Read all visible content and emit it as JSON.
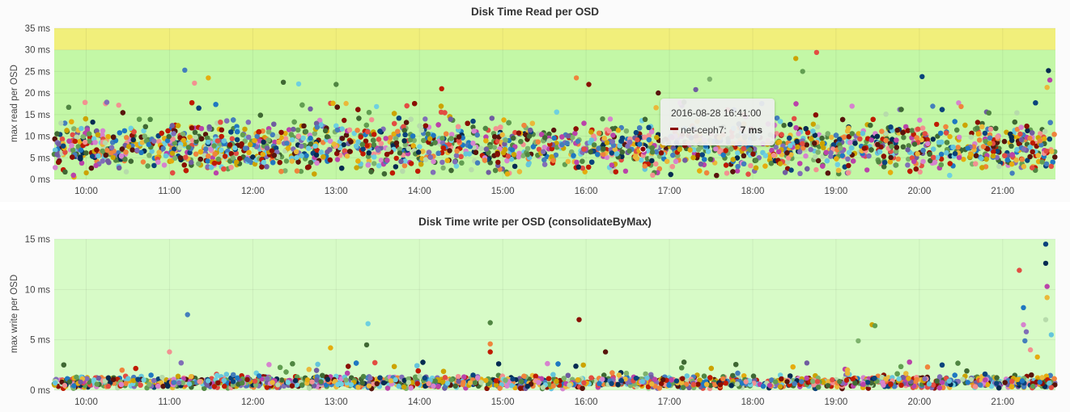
{
  "panels": {
    "read": {
      "title": "Disk Time Read per OSD",
      "ylabel": "max read per OSD"
    },
    "write": {
      "title": "Disk Time write per OSD (consolidateByMax)",
      "ylabel": "max write per OSD"
    }
  },
  "tooltip": {
    "time": "2016-08-28 16:41:00",
    "series": "net-ceph7:",
    "value": "7 ms",
    "series_color": "#8b0000"
  },
  "colors": {
    "threshold_ok": "#d7fbc7",
    "threshold_ok_strong": "#c3f7a6",
    "threshold_warning": "#f1ef7b",
    "palette": [
      "#3f6833",
      "#705da0",
      "#ba43a9",
      "#447ebc",
      "#ef843c",
      "#e24d42",
      "#1f78c1",
      "#6ed0e0",
      "#7eb26d",
      "#eab839",
      "#f29191",
      "#890f02",
      "#0a437c",
      "#d683ce",
      "#508642",
      "#cca300",
      "#b7dbab",
      "#e5ac0e",
      "#58140c",
      "#052b51",
      "#806eb7",
      "#bf1b00",
      "#629e51",
      "#65c5db"
    ]
  },
  "chart_data": [
    {
      "type": "scatter",
      "title": "Disk Time Read per OSD",
      "xlabel": "",
      "ylabel": "max read per OSD",
      "x_ticks": [
        "10:00",
        "11:00",
        "12:00",
        "13:00",
        "14:00",
        "15:00",
        "16:00",
        "17:00",
        "18:00",
        "19:00",
        "20:00",
        "21:00"
      ],
      "xlim": [
        "09:37",
        "21:38"
      ],
      "y_ticks": [
        "0 ms",
        "5 ms",
        "10 ms",
        "15 ms",
        "20 ms",
        "25 ms",
        "30 ms",
        "35 ms"
      ],
      "ylim": [
        0,
        35
      ],
      "thresholds": [
        {
          "from": 0,
          "to": 30,
          "level": "ok"
        },
        {
          "from": 30,
          "to": 35,
          "level": "warning"
        }
      ],
      "series_count": 24,
      "distribution": {
        "typical_min": 1,
        "typical_max": 15,
        "center": 7.5
      },
      "outliers": [
        {
          "x": "11:11",
          "y": 25.3
        },
        {
          "x": "11:18",
          "y": 22.3
        },
        {
          "x": "11:28",
          "y": 23.5
        },
        {
          "x": "12:22",
          "y": 22.5
        },
        {
          "x": "12:33",
          "y": 22.1
        },
        {
          "x": "13:00",
          "y": 22.0
        },
        {
          "x": "14:16",
          "y": 21.0
        },
        {
          "x": "15:53",
          "y": 23.5
        },
        {
          "x": "16:02",
          "y": 22.0
        },
        {
          "x": "16:52",
          "y": 20.0
        },
        {
          "x": "17:19",
          "y": 20.8
        },
        {
          "x": "17:29",
          "y": 23.2
        },
        {
          "x": "18:31",
          "y": 28.0
        },
        {
          "x": "18:36",
          "y": 25.0
        },
        {
          "x": "18:46",
          "y": 29.4
        },
        {
          "x": "20:02",
          "y": 23.8
        },
        {
          "x": "21:33",
          "y": 25.2
        },
        {
          "x": "21:34",
          "y": 23.0
        },
        {
          "x": "21:32",
          "y": 21.3
        }
      ],
      "highlight": {
        "series": "net-ceph7",
        "x": "16:41",
        "y": 7
      }
    },
    {
      "type": "scatter",
      "title": "Disk Time write per OSD (consolidateByMax)",
      "xlabel": "",
      "ylabel": "max write per OSD",
      "x_ticks": [
        "10:00",
        "11:00",
        "12:00",
        "13:00",
        "14:00",
        "15:00",
        "16:00",
        "17:00",
        "18:00",
        "19:00",
        "20:00",
        "21:00"
      ],
      "xlim": [
        "09:37",
        "21:38"
      ],
      "y_ticks": [
        "0 ms",
        "5 ms",
        "10 ms",
        "15 ms"
      ],
      "ylim": [
        0,
        15
      ],
      "thresholds": [
        {
          "from": 0,
          "to": 15,
          "level": "ok"
        }
      ],
      "series_count": 24,
      "distribution": {
        "typical_min": 0,
        "typical_max": 1.8,
        "center": 0.8
      },
      "outliers": [
        {
          "x": "11:13",
          "y": 7.5
        },
        {
          "x": "11:00",
          "y": 3.8
        },
        {
          "x": "12:56",
          "y": 4.2
        },
        {
          "x": "13:22",
          "y": 4.5
        },
        {
          "x": "13:23",
          "y": 6.6
        },
        {
          "x": "14:51",
          "y": 6.7
        },
        {
          "x": "14:51",
          "y": 3.8
        },
        {
          "x": "14:51",
          "y": 4.6
        },
        {
          "x": "15:55",
          "y": 7.0
        },
        {
          "x": "16:14",
          "y": 3.8
        },
        {
          "x": "18:39",
          "y": 2.7
        },
        {
          "x": "19:16",
          "y": 4.9
        },
        {
          "x": "19:26",
          "y": 6.5
        },
        {
          "x": "19:28",
          "y": 6.4
        },
        {
          "x": "21:12",
          "y": 11.9
        },
        {
          "x": "21:31",
          "y": 14.5
        },
        {
          "x": "21:31",
          "y": 12.6
        },
        {
          "x": "21:32",
          "y": 10.3
        },
        {
          "x": "21:32",
          "y": 9.2
        },
        {
          "x": "21:31",
          "y": 7.0
        },
        {
          "x": "21:35",
          "y": 5.5
        },
        {
          "x": "21:15",
          "y": 8.2
        },
        {
          "x": "21:15",
          "y": 6.5
        },
        {
          "x": "21:17",
          "y": 5.8
        },
        {
          "x": "21:16",
          "y": 4.9
        },
        {
          "x": "21:20",
          "y": 4.0
        },
        {
          "x": "21:25",
          "y": 3.3
        }
      ]
    }
  ]
}
